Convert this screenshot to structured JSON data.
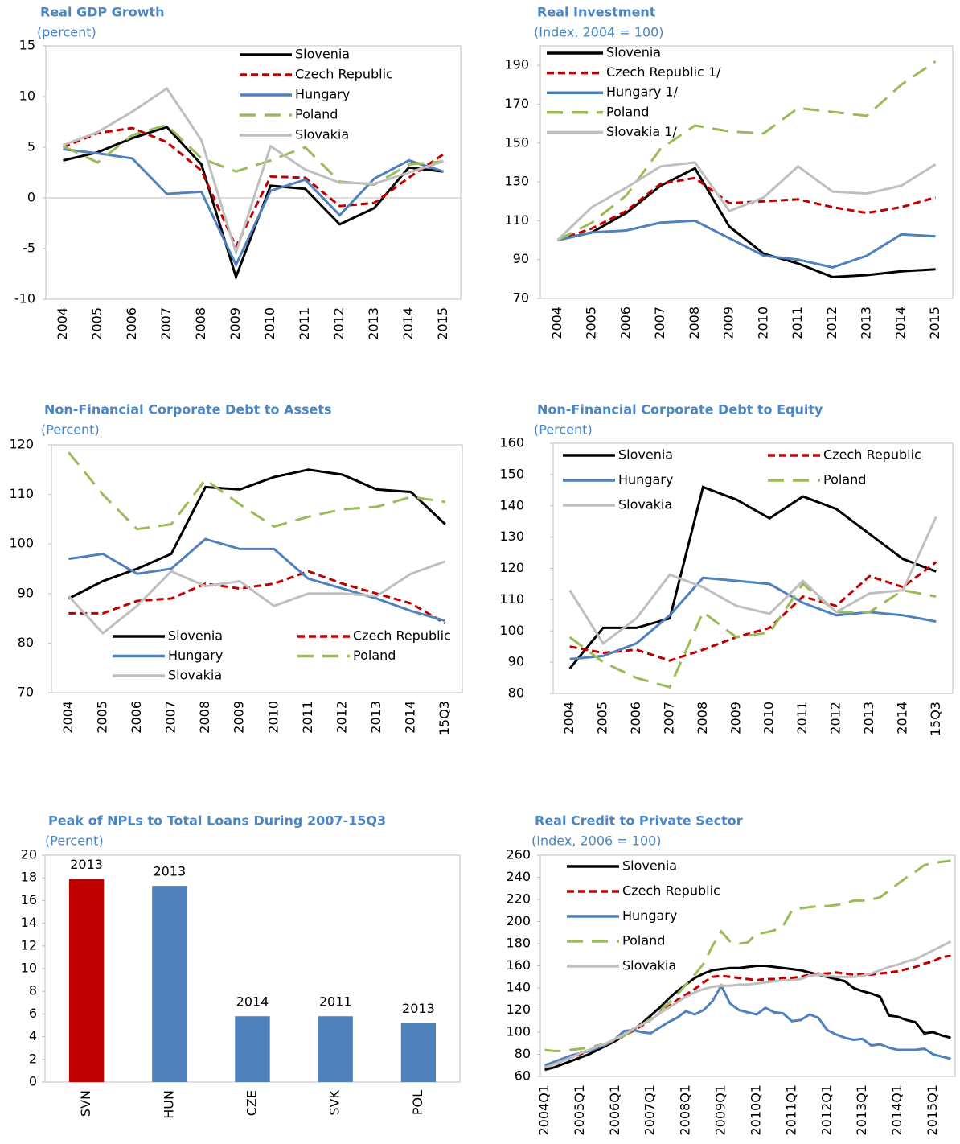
{
  "chart_data": [
    {
      "type": "line",
      "title": "Real GDP Growth",
      "subtitle": "(percent)",
      "categories": [
        "2004",
        "2005",
        "2006",
        "2007",
        "2008",
        "2009",
        "2010",
        "2011",
        "2012",
        "2013",
        "2014",
        "2015"
      ],
      "ylim": [
        -10,
        15
      ],
      "yticks": [
        -10,
        -5,
        0,
        5,
        10,
        15
      ],
      "zero_line": true,
      "legend": "top-center",
      "legend_columns": 1,
      "series": [
        {
          "name": "Slovenia",
          "color": "#000000",
          "line_style": "solid",
          "values": [
            3.7,
            4.5,
            5.9,
            7.0,
            3.3,
            -7.8,
            1.2,
            0.9,
            -2.6,
            -1.0,
            3.0,
            2.6
          ]
        },
        {
          "name": "Czech Republic",
          "color": "#c00000",
          "line_style": "dashed",
          "values": [
            5.0,
            6.4,
            6.9,
            5.5,
            2.7,
            -4.8,
            2.1,
            2.0,
            -0.8,
            -0.5,
            2.0,
            4.3
          ]
        },
        {
          "name": "Hungary",
          "color": "#4f81bd",
          "line_style": "solid",
          "values": [
            4.8,
            4.4,
            3.9,
            0.4,
            0.6,
            -6.6,
            0.7,
            1.8,
            -1.7,
            1.9,
            3.7,
            2.6
          ]
        },
        {
          "name": "Poland",
          "color": "#9bbb59",
          "line_style": "long-dashed",
          "values": [
            5.1,
            3.5,
            6.2,
            7.2,
            3.9,
            2.6,
            3.7,
            5.0,
            1.6,
            1.3,
            3.3,
            3.6
          ]
        },
        {
          "name": "Slovakia",
          "color": "#bfbfbf",
          "line_style": "solid",
          "values": [
            5.2,
            6.5,
            8.5,
            10.8,
            5.7,
            -5.4,
            5.1,
            2.8,
            1.5,
            1.4,
            2.5,
            3.6
          ]
        }
      ]
    },
    {
      "type": "line",
      "title": "Real Investment",
      "subtitle": "(Index, 2004 = 100)",
      "categories": [
        "2004",
        "2005",
        "2006",
        "2007",
        "2008",
        "2009",
        "2010",
        "2011",
        "2012",
        "2013",
        "2014",
        "2015"
      ],
      "ylim": [
        70,
        200
      ],
      "yticks": [
        70,
        90,
        110,
        130,
        150,
        170,
        190
      ],
      "legend": "top-left",
      "legend_columns": 1,
      "series": [
        {
          "name": "Slovenia",
          "color": "#000000",
          "line_style": "solid",
          "values": [
            100,
            104,
            114,
            128,
            137,
            107,
            93,
            88,
            81,
            82,
            84,
            85
          ]
        },
        {
          "name": "Czech Republic 1/",
          "color": "#c00000",
          "line_style": "dashed",
          "values": [
            100,
            106,
            115,
            129,
            132,
            119,
            120,
            121,
            117,
            114,
            117,
            122
          ]
        },
        {
          "name": "Hungary 1/",
          "color": "#4f81bd",
          "line_style": "solid",
          "values": [
            100,
            104,
            105,
            109,
            110,
            101,
            92,
            90,
            86,
            92,
            103,
            102
          ]
        },
        {
          "name": "Poland",
          "color": "#9bbb59",
          "line_style": "long-dashed",
          "values": [
            100,
            109,
            123,
            147,
            159,
            156,
            155,
            168,
            166,
            164,
            180,
            192
          ]
        },
        {
          "name": "Slovakia 1/",
          "color": "#bfbfbf",
          "line_style": "solid",
          "values": [
            100,
            117,
            127,
            138,
            140,
            115,
            122,
            138,
            125,
            124,
            128,
            139
          ]
        }
      ]
    },
    {
      "type": "line",
      "title": "Non-Financial Corporate Debt to Assets",
      "subtitle": "(Percent)",
      "categories": [
        "2004",
        "2005",
        "2006",
        "2007",
        "2008",
        "2009",
        "2010",
        "2011",
        "2012",
        "2013",
        "2014",
        "15Q3"
      ],
      "ylim": [
        70,
        120
      ],
      "yticks": [
        70,
        80,
        90,
        100,
        110,
        120
      ],
      "legend": "bottom",
      "legend_columns": 2,
      "series": [
        {
          "name": "Slovenia",
          "color": "#000000",
          "line_style": "solid",
          "values": [
            89,
            92.5,
            95,
            98,
            111.5,
            111,
            113.5,
            115,
            114,
            111,
            110.5,
            104
          ]
        },
        {
          "name": "Czech Republic",
          "color": "#c00000",
          "line_style": "dashed",
          "values": [
            86,
            86,
            88.5,
            89,
            92,
            91,
            92,
            94.5,
            92,
            90,
            88,
            84
          ]
        },
        {
          "name": "Hungary",
          "color": "#4f81bd",
          "line_style": "solid",
          "values": [
            97,
            98,
            94,
            95,
            101,
            99,
            99,
            93,
            91,
            89,
            86.5,
            84.5
          ]
        },
        {
          "name": "Poland",
          "color": "#9bbb59",
          "line_style": "long-dashed",
          "values": [
            118.5,
            110,
            103,
            104,
            113,
            108,
            103.5,
            105.5,
            107,
            107.5,
            109.5,
            108.5
          ]
        },
        {
          "name": "Slovakia",
          "color": "#bfbfbf",
          "line_style": "solid",
          "values": [
            89.5,
            82,
            87.5,
            94.5,
            91.5,
            92.5,
            87.5,
            90,
            90,
            89.5,
            94,
            96.5
          ]
        }
      ]
    },
    {
      "type": "line",
      "title": "Non-Financial Corporate Debt to Equity",
      "subtitle": "(Percent)",
      "categories": [
        "2004",
        "2005",
        "2006",
        "2007",
        "2008",
        "2009",
        "2010",
        "2011",
        "2012",
        "2013",
        "2014",
        "15Q3"
      ],
      "ylim": [
        80,
        160
      ],
      "yticks": [
        80,
        90,
        100,
        110,
        120,
        130,
        140,
        150,
        160
      ],
      "legend": "top",
      "legend_columns": 2,
      "series": [
        {
          "name": "Slovenia",
          "color": "#000000",
          "line_style": "solid",
          "values": [
            88,
            101,
            101,
            104,
            146,
            142,
            136,
            143,
            139,
            131,
            123,
            119
          ]
        },
        {
          "name": "Czech Republic",
          "color": "#c00000",
          "line_style": "dashed",
          "values": [
            95,
            93,
            94,
            90.5,
            94,
            98,
            101,
            111,
            108,
            117.5,
            114,
            122
          ]
        },
        {
          "name": "Hungary",
          "color": "#4f81bd",
          "line_style": "solid",
          "values": [
            91,
            92,
            96,
            105,
            117,
            116,
            115,
            109,
            105,
            106,
            105,
            103
          ]
        },
        {
          "name": "Poland",
          "color": "#9bbb59",
          "line_style": "long-dashed",
          "values": [
            98,
            90,
            85,
            82,
            106,
            98,
            99.5,
            115,
            106,
            106,
            113,
            111
          ]
        },
        {
          "name": "Slovakia",
          "color": "#bfbfbf",
          "line_style": "solid",
          "values": [
            113,
            96,
            104,
            118,
            114,
            108,
            105.5,
            116,
            106,
            112,
            113,
            136.5
          ]
        }
      ]
    },
    {
      "type": "bar",
      "title": "Peak of NPLs to Total Loans During 2007-15Q3",
      "subtitle": "(Percent)",
      "categories": [
        "SVN",
        "HUN",
        "CZE",
        "SVK",
        "POL"
      ],
      "values": [
        17.9,
        17.3,
        5.8,
        5.8,
        5.2
      ],
      "annotations": [
        "2013",
        "2013",
        "2014",
        "2011",
        "2013"
      ],
      "colors": [
        "#c00000",
        "#4f81bd",
        "#4f81bd",
        "#4f81bd",
        "#4f81bd"
      ],
      "ylim": [
        0,
        20
      ],
      "yticks": [
        0,
        2,
        4,
        6,
        8,
        10,
        12,
        14,
        16,
        18,
        20
      ]
    },
    {
      "type": "line",
      "title": "Real Credit to Private Sector",
      "subtitle": "(Index, 2006 = 100)",
      "categories": [
        "2004Q1",
        null,
        null,
        null,
        "2005Q1",
        null,
        null,
        null,
        "2006Q1",
        null,
        null,
        null,
        "2007Q1",
        null,
        null,
        null,
        "2008Q1",
        null,
        null,
        null,
        "2009Q1",
        null,
        null,
        null,
        "2010Q1",
        null,
        null,
        null,
        "2011Q1",
        null,
        null,
        null,
        "2012Q1",
        null,
        null,
        null,
        "2013Q1",
        null,
        null,
        null,
        "2014Q1",
        null,
        null,
        null,
        "2015Q1",
        null,
        null
      ],
      "ylim": [
        60,
        260
      ],
      "yticks": [
        60,
        80,
        100,
        120,
        140,
        160,
        180,
        200,
        220,
        240,
        260
      ],
      "legend": "top-left",
      "legend_columns": 1,
      "series": [
        {
          "name": "Slovenia",
          "color": "#000000",
          "line_style": "solid",
          "values": [
            66,
            68,
            71,
            74,
            77,
            80,
            84,
            88,
            92,
            97,
            102,
            108,
            115,
            122,
            130,
            137,
            143,
            149,
            153,
            156,
            157,
            158,
            158,
            159,
            160,
            160,
            159,
            158,
            157,
            156,
            154,
            152,
            150,
            148,
            146,
            140,
            137,
            135,
            132,
            115,
            114,
            111,
            109,
            99,
            100,
            97,
            95
          ]
        },
        {
          "name": "Czech Republic",
          "color": "#c00000",
          "line_style": "dashed",
          "values": [
            68,
            71,
            74,
            77,
            80,
            83,
            86,
            89,
            93,
            97,
            101,
            106,
            111,
            117,
            123,
            129,
            134,
            139,
            145,
            150,
            151,
            150,
            149,
            148,
            147,
            148,
            148,
            149,
            149,
            150,
            152,
            153,
            153,
            154,
            153,
            152,
            152,
            152,
            153,
            154,
            155,
            157,
            159,
            162,
            164,
            168,
            169
          ]
        },
        {
          "name": "Hungary",
          "color": "#4f81bd",
          "line_style": "solid",
          "values": [
            70,
            73,
            76,
            79,
            81,
            83,
            86,
            89,
            94,
            101,
            102,
            100,
            99,
            104,
            109,
            113,
            119,
            116,
            120,
            128,
            142,
            126,
            120,
            118,
            116,
            122,
            118,
            117,
            110,
            111,
            116,
            113,
            102,
            98,
            95,
            93,
            94,
            88,
            89,
            86,
            84,
            84,
            84,
            85,
            80,
            78,
            76
          ]
        },
        {
          "name": "Poland",
          "color": "#9bbb59",
          "line_style": "long-dashed",
          "values": [
            84,
            83,
            83,
            84,
            85,
            86,
            88,
            90,
            93,
            97,
            102,
            107,
            112,
            119,
            126,
            134,
            143,
            152,
            162,
            178,
            191,
            182,
            180,
            181,
            189,
            190,
            192,
            196,
            210,
            212,
            213,
            214,
            214,
            215,
            216,
            219,
            219,
            220,
            222,
            228,
            234,
            240,
            245,
            251,
            253,
            254,
            255
          ]
        },
        {
          "name": "Slovakia",
          "color": "#bfbfbf",
          "line_style": "solid",
          "values": [
            68,
            71,
            74,
            77,
            81,
            84,
            87,
            90,
            94,
            98,
            103,
            107,
            111,
            117,
            122,
            127,
            132,
            136,
            139,
            141,
            142,
            142,
            143,
            143,
            144,
            145,
            146,
            147,
            147,
            148,
            151,
            152,
            151,
            150,
            150,
            150,
            151,
            153,
            156,
            159,
            161,
            164,
            166,
            170,
            174,
            178,
            182
          ]
        }
      ]
    }
  ]
}
